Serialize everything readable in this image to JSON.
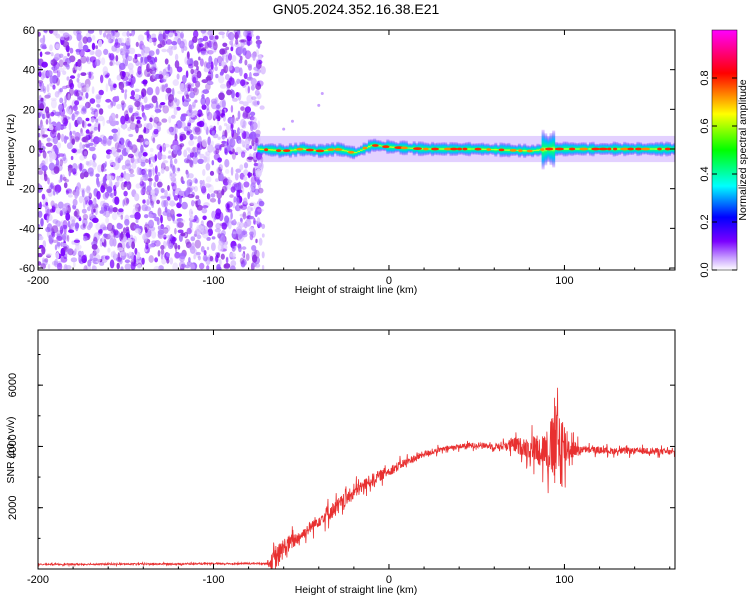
{
  "title": "GN05.2024.352.16.38.E21",
  "chart_data": [
    {
      "type": "heatmap",
      "name": "spectrogram",
      "xlabel": "Height of straight line (km)",
      "ylabel": "Frequency (Hz)",
      "xlim": [
        -200,
        163
      ],
      "ylim": [
        -61,
        60
      ],
      "x_ticks": [
        -200,
        -100,
        0,
        100
      ],
      "y_ticks": [
        -60,
        -40,
        -20,
        0,
        20,
        40,
        60
      ],
      "colorbar": {
        "label": "Normalized spectral amplitude",
        "range": [
          0,
          1
        ],
        "ticks": [
          0.0,
          0.2,
          0.4,
          0.6,
          0.8
        ],
        "colors": [
          "#ffffff",
          "#7a00ff",
          "#0000ff",
          "#00ffff",
          "#00ff00",
          "#ffff00",
          "#ff0000",
          "#ff00ff"
        ]
      },
      "regions": [
        {
          "kind": "noise",
          "x_range": [
            -200,
            -75
          ],
          "freq_range": [
            -61,
            60
          ],
          "amplitude": 0.05
        },
        {
          "kind": "signal",
          "x_range": [
            -75,
            163
          ],
          "center_freq": 0,
          "half_width_hz": 3,
          "peak_amplitude": 0.95
        }
      ],
      "signal_track": [
        {
          "x": -75,
          "f": 0
        },
        {
          "x": -60,
          "f": -1
        },
        {
          "x": -50,
          "f": 0
        },
        {
          "x": -40,
          "f": -1
        },
        {
          "x": -30,
          "f": 0
        },
        {
          "x": -20,
          "f": -2
        },
        {
          "x": -10,
          "f": 2
        },
        {
          "x": 0,
          "f": 1
        },
        {
          "x": 20,
          "f": 0
        },
        {
          "x": 50,
          "f": 0
        },
        {
          "x": 80,
          "f": -1
        },
        {
          "x": 90,
          "f": 0
        },
        {
          "x": 100,
          "f": 0
        },
        {
          "x": 130,
          "f": 0
        },
        {
          "x": 163,
          "f": 0
        }
      ]
    },
    {
      "type": "line",
      "name": "snr",
      "xlabel": "Height of straight line (km)",
      "ylabel": "SNR (10 * v/v)",
      "xlim": [
        -200,
        163
      ],
      "ylim": [
        0,
        7800
      ],
      "x_ticks": [
        -200,
        -100,
        0,
        100
      ],
      "y_ticks": [
        2000,
        4000,
        6000
      ],
      "color": "#e83030",
      "series": [
        {
          "points": [
            [
              -200,
              150
            ],
            [
              -150,
              160
            ],
            [
              -100,
              170
            ],
            [
              -70,
              180
            ],
            [
              -65,
              250
            ],
            [
              -60,
              700
            ],
            [
              -50,
              1100
            ],
            [
              -40,
              1600
            ],
            [
              -30,
              2000
            ],
            [
              -20,
              2500
            ],
            [
              -10,
              2900
            ],
            [
              0,
              3200
            ],
            [
              10,
              3500
            ],
            [
              20,
              3750
            ],
            [
              30,
              3900
            ],
            [
              40,
              4000
            ],
            [
              50,
              4050
            ],
            [
              60,
              4000
            ],
            [
              70,
              4050
            ],
            [
              80,
              3950
            ],
            [
              90,
              3900
            ],
            [
              100,
              3950
            ],
            [
              110,
              3900
            ],
            [
              130,
              3850
            ],
            [
              150,
              3850
            ],
            [
              163,
              3800
            ]
          ],
          "noise": [
            [
              -200,
              50
            ],
            [
              -70,
              60
            ],
            [
              -65,
              900
            ],
            [
              -50,
              400
            ],
            [
              -30,
              600
            ],
            [
              -10,
              450
            ],
            [
              10,
              300
            ],
            [
              30,
              180
            ],
            [
              60,
              200
            ],
            [
              80,
              800
            ],
            [
              90,
              1500
            ],
            [
              97,
              3800
            ],
            [
              102,
              900
            ],
            [
              110,
              250
            ],
            [
              163,
              220
            ]
          ]
        }
      ]
    }
  ]
}
